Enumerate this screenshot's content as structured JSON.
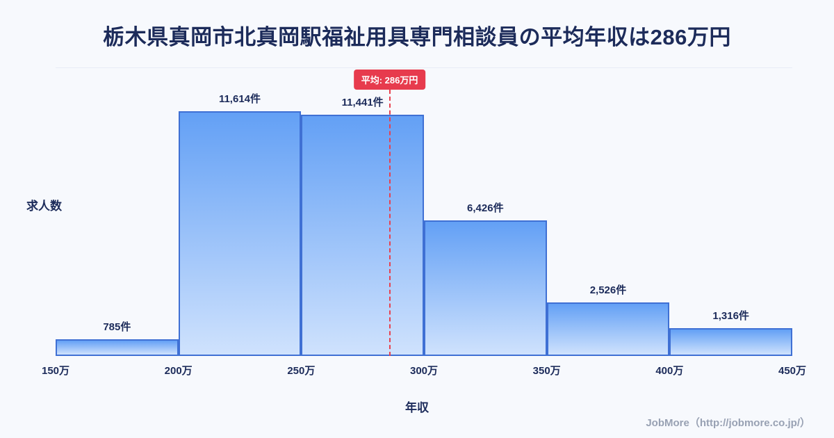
{
  "page": {
    "title": "栃木県真岡市北真岡駅福祉用具専門相談員の平均年収は286万円",
    "footer_credit": "JobMore（http://jobmore.co.jp/）"
  },
  "chart_data": {
    "type": "bar",
    "subtype": "histogram",
    "title": "栃木県真岡市北真岡駅福祉用具専門相談員の平均年収は286万円",
    "xlabel": "年収",
    "ylabel": "求人数",
    "bin_edge_labels": [
      "150万",
      "200万",
      "250万",
      "300万",
      "350万",
      "400万",
      "450万"
    ],
    "bin_edges": [
      150,
      200,
      250,
      300,
      350,
      400,
      450
    ],
    "values": [
      785,
      11614,
      11441,
      6426,
      2526,
      1316
    ],
    "value_labels": [
      "785件",
      "11,614件",
      "11,441件",
      "6,426件",
      "2,526件",
      "1,316件"
    ],
    "average": {
      "value": 286,
      "label": "平均: 286万円"
    },
    "legend": "none",
    "grid": false,
    "colors": {
      "background": "#f7f9fd",
      "text": "#1c2b5a",
      "bar_gradient_top": "#63a0f5",
      "bar_gradient_bottom": "#cfe2fd",
      "bar_border": "#3f70d4",
      "average_line": "#e8414f",
      "badge_background": "#e73b4d",
      "badge_text": "#ffffff",
      "footer_text": "#98a1b3"
    }
  }
}
